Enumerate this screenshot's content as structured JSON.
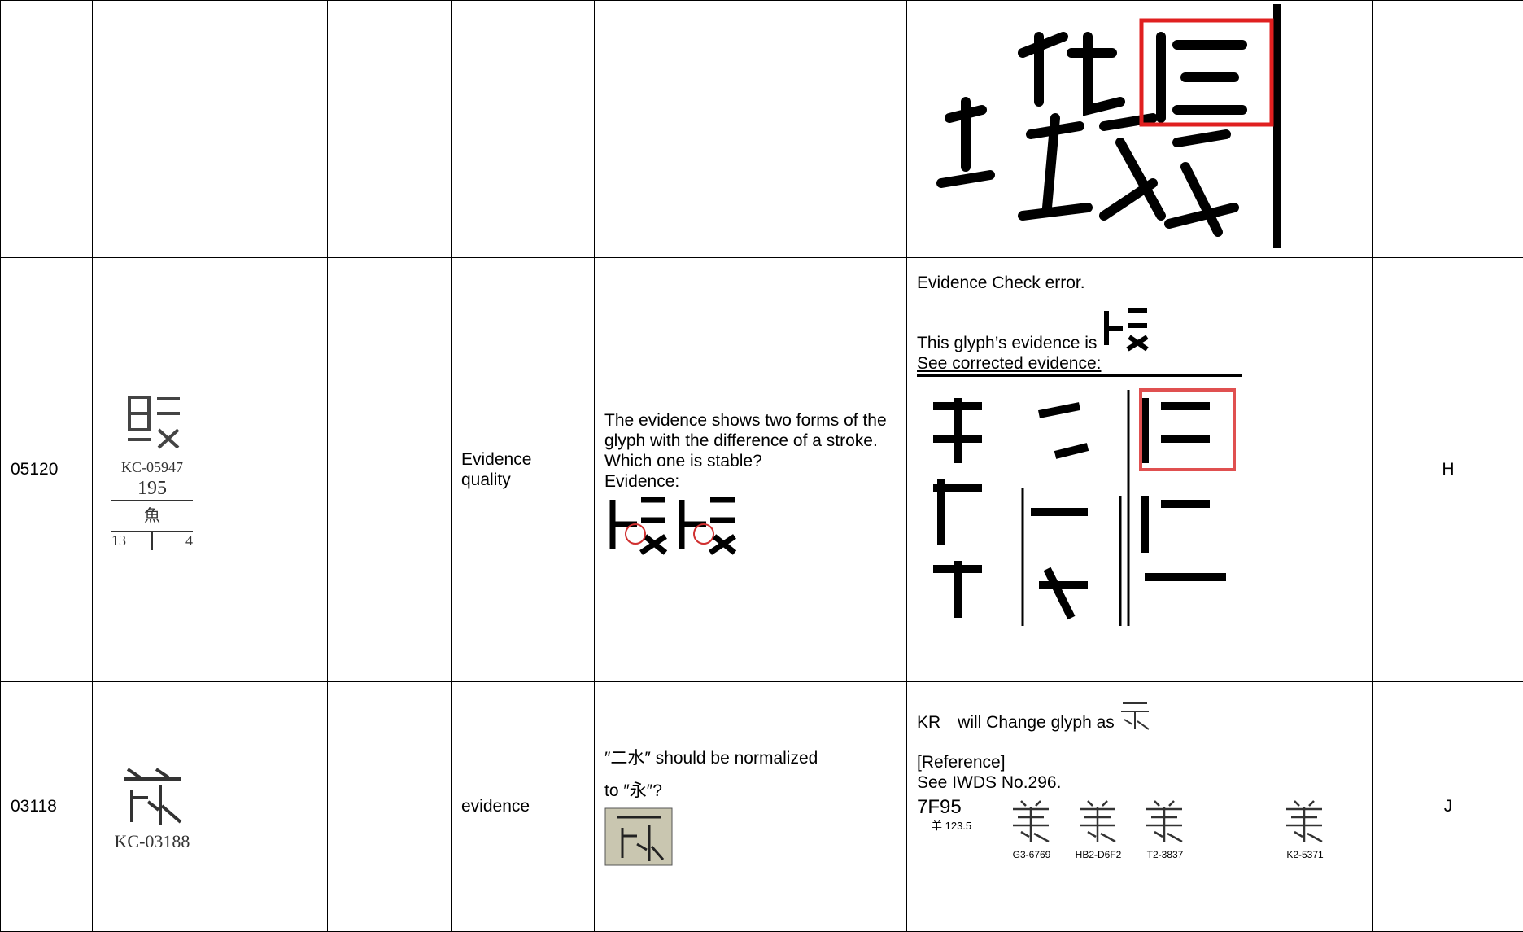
{
  "table": {
    "rows": [
      {
        "id": "05120",
        "kc": "KC-05947",
        "total_strokes": "195",
        "radical": "魚",
        "radical_no": "13",
        "extra_strokes": "4",
        "category": "Evidence quality",
        "comment": [
          "The evidence shows two forms of the glyph with the difference of a stroke.",
          "Which one is stable?",
          "Evidence:"
        ],
        "response": [
          "Evidence Check error.",
          "This glyph’s evidence is",
          "See corrected evidence:"
        ],
        "disposition": "H"
      },
      {
        "id": "03118",
        "kc": "KC-03188",
        "category": "evidence",
        "comment": [
          "″二水″ should be normalized",
          "to ″永″?"
        ],
        "response": [
          "KR　will Change glyph as",
          "[Reference]",
          "See IWDS No.296."
        ],
        "code": "7F95",
        "code_radical": "羊 123.5",
        "sources": [
          "G3-6769",
          "HB2-D6F2",
          "T2-3837",
          "K2-5371"
        ],
        "disposition": "J"
      }
    ]
  }
}
